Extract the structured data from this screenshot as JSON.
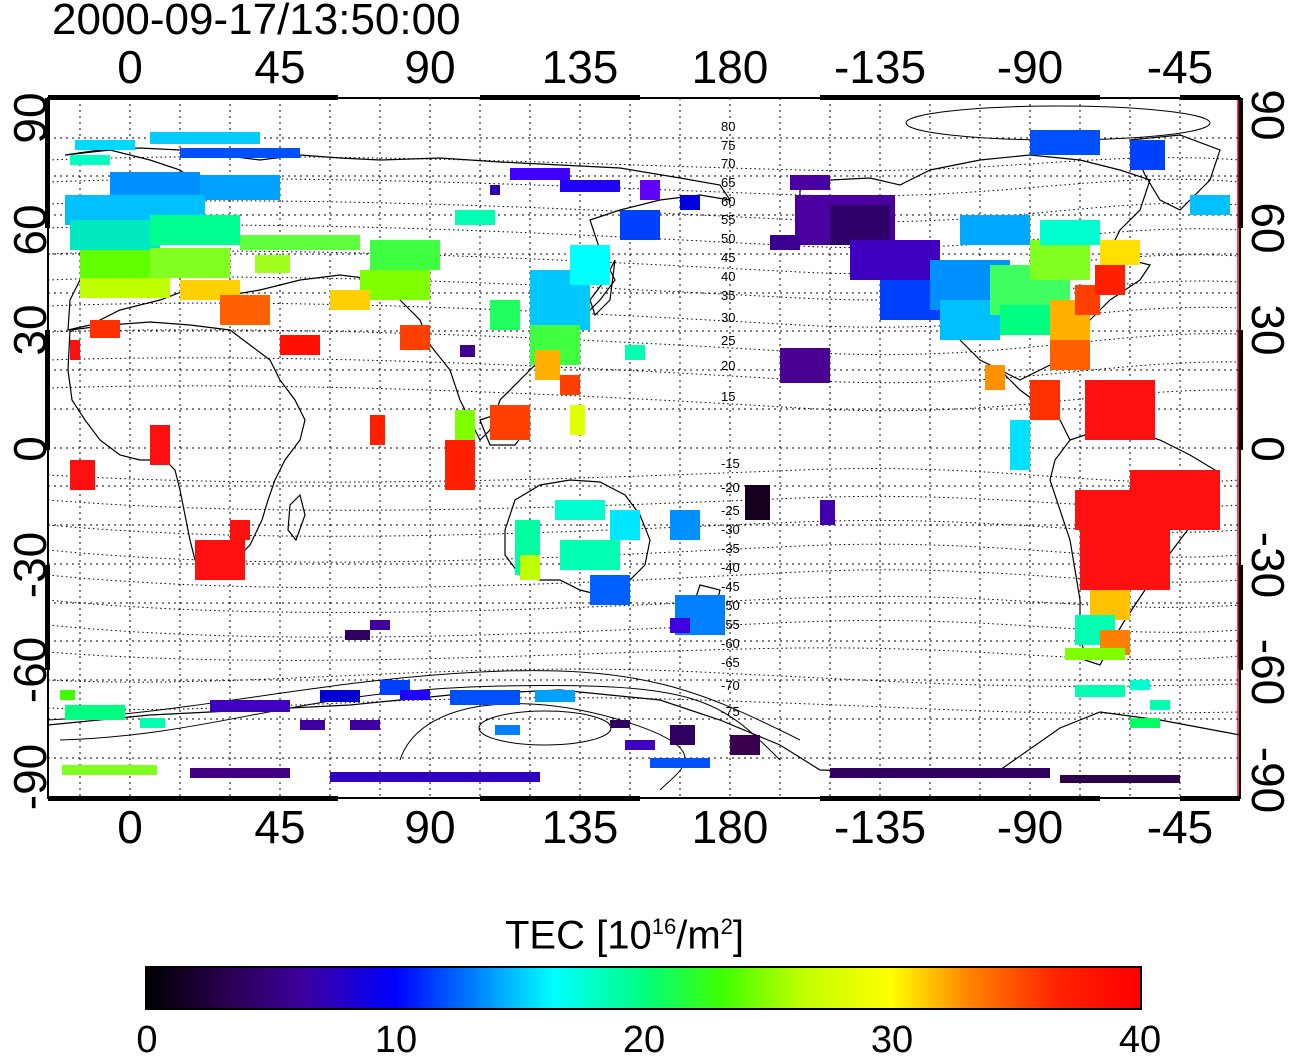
{
  "title": "2000-09-17/13:50:00",
  "x_ticks": [
    "0",
    "45",
    "90",
    "135",
    "180",
    "-135",
    "-90",
    "-45"
  ],
  "y_ticks": [
    "90",
    "60",
    "30",
    "0",
    "-30",
    "-60",
    "-90"
  ],
  "contour_labels": [
    "80",
    "75",
    "70",
    "65",
    "60",
    "55",
    "50",
    "45",
    "40",
    "35",
    "30",
    "25",
    "20",
    "15",
    "-15",
    "-20",
    "-25",
    "-30",
    "-35",
    "-40",
    "-45",
    "-50",
    "-55",
    "-60",
    "-65",
    "-70",
    "-75"
  ],
  "colorbar": {
    "label_main": "TEC  [10",
    "label_exp1": "16",
    "label_mid": "/m",
    "label_exp2": "2",
    "label_end": "]",
    "min": 0,
    "max": 40,
    "ticks": [
      "0",
      "10",
      "20",
      "30",
      "40"
    ]
  },
  "colors": {
    "ocean": "#ffffff",
    "land_outline": "#000000",
    "gridline": "#000000"
  }
}
